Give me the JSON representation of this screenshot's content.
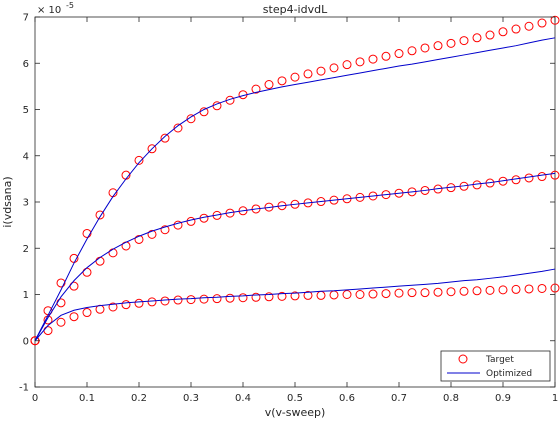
{
  "chart_data": {
    "type": "line",
    "title": "step4-idvdL",
    "xlabel": "v(v-sweep)",
    "ylabel": "i(vdsana)",
    "y_exponent_label": "× 10",
    "y_exponent_power": "-5",
    "xlim": [
      0,
      1
    ],
    "ylim": [
      -1,
      7
    ],
    "x_ticks": [
      0,
      0.1,
      0.2,
      0.3,
      0.4,
      0.5,
      0.6,
      0.7,
      0.8,
      0.9,
      1
    ],
    "x_tick_labels": [
      "0",
      "0.1",
      "0.2",
      "0.3",
      "0.4",
      "0.5",
      "0.6",
      "0.7",
      "0.8",
      "0.9",
      "1"
    ],
    "y_ticks": [
      -1,
      0,
      1,
      2,
      3,
      4,
      5,
      6,
      7
    ],
    "y_tick_labels": [
      "-1",
      "0",
      "1",
      "2",
      "3",
      "4",
      "5",
      "6",
      "7"
    ],
    "grid": false,
    "legend_position": "bottom-right",
    "colors": {
      "target": "#ff0000",
      "optimized": "#0000cc",
      "axes": "#262626"
    },
    "x": [
      0,
      0.025,
      0.05,
      0.075,
      0.1,
      0.125,
      0.15,
      0.175,
      0.2,
      0.225,
      0.25,
      0.275,
      0.3,
      0.325,
      0.35,
      0.375,
      0.4,
      0.425,
      0.45,
      0.475,
      0.5,
      0.525,
      0.55,
      0.575,
      0.6,
      0.625,
      0.65,
      0.675,
      0.7,
      0.725,
      0.75,
      0.775,
      0.8,
      0.825,
      0.85,
      0.875,
      0.9,
      0.925,
      0.95,
      0.975,
      1
    ],
    "series": [
      {
        "name": "Target",
        "style": "markers",
        "curves": [
          [
            0,
            0.65,
            1.25,
            1.78,
            2.32,
            2.72,
            3.2,
            3.58,
            3.9,
            4.15,
            4.38,
            4.6,
            4.8,
            4.95,
            5.08,
            5.2,
            5.32,
            5.44,
            5.54,
            5.62,
            5.7,
            5.77,
            5.83,
            5.9,
            5.97,
            6.03,
            6.09,
            6.15,
            6.21,
            6.27,
            6.33,
            6.38,
            6.43,
            6.49,
            6.55,
            6.61,
            6.68,
            6.74,
            6.8,
            6.87,
            6.93
          ],
          [
            0,
            0.45,
            0.82,
            1.18,
            1.48,
            1.72,
            1.9,
            2.05,
            2.19,
            2.3,
            2.4,
            2.5,
            2.58,
            2.65,
            2.71,
            2.76,
            2.81,
            2.85,
            2.89,
            2.92,
            2.95,
            2.98,
            3.01,
            3.04,
            3.07,
            3.1,
            3.13,
            3.16,
            3.19,
            3.22,
            3.25,
            3.28,
            3.31,
            3.34,
            3.37,
            3.41,
            3.45,
            3.48,
            3.52,
            3.55,
            3.58
          ],
          [
            0,
            0.22,
            0.4,
            0.52,
            0.61,
            0.68,
            0.73,
            0.78,
            0.81,
            0.84,
            0.86,
            0.88,
            0.89,
            0.9,
            0.91,
            0.92,
            0.93,
            0.94,
            0.95,
            0.96,
            0.97,
            0.98,
            0.98,
            0.99,
            1.0,
            1.0,
            1.01,
            1.02,
            1.03,
            1.04,
            1.04,
            1.05,
            1.06,
            1.07,
            1.08,
            1.09,
            1.1,
            1.11,
            1.12,
            1.13,
            1.14
          ]
        ]
      },
      {
        "name": "Optimized",
        "style": "line",
        "curves": [
          [
            0,
            0.55,
            1.1,
            1.68,
            2.2,
            2.68,
            3.12,
            3.5,
            3.85,
            4.15,
            4.42,
            4.65,
            4.84,
            5.0,
            5.12,
            5.22,
            5.3,
            5.37,
            5.43,
            5.49,
            5.54,
            5.59,
            5.64,
            5.69,
            5.74,
            5.79,
            5.84,
            5.89,
            5.94,
            5.98,
            6.03,
            6.08,
            6.13,
            6.18,
            6.23,
            6.28,
            6.33,
            6.38,
            6.44,
            6.5,
            6.55
          ],
          [
            0,
            0.5,
            0.95,
            1.3,
            1.58,
            1.8,
            1.98,
            2.13,
            2.26,
            2.37,
            2.46,
            2.54,
            2.61,
            2.67,
            2.72,
            2.77,
            2.81,
            2.85,
            2.88,
            2.92,
            2.95,
            2.98,
            3.01,
            3.04,
            3.07,
            3.1,
            3.13,
            3.16,
            3.19,
            3.22,
            3.25,
            3.29,
            3.32,
            3.35,
            3.39,
            3.42,
            3.46,
            3.5,
            3.54,
            3.58,
            3.62
          ],
          [
            0,
            0.33,
            0.55,
            0.66,
            0.72,
            0.76,
            0.79,
            0.82,
            0.84,
            0.86,
            0.88,
            0.9,
            0.91,
            0.93,
            0.94,
            0.96,
            0.97,
            0.99,
            1.0,
            1.02,
            1.03,
            1.05,
            1.07,
            1.08,
            1.1,
            1.12,
            1.14,
            1.16,
            1.18,
            1.2,
            1.22,
            1.24,
            1.27,
            1.3,
            1.32,
            1.35,
            1.38,
            1.42,
            1.46,
            1.5,
            1.55
          ]
        ]
      }
    ]
  }
}
